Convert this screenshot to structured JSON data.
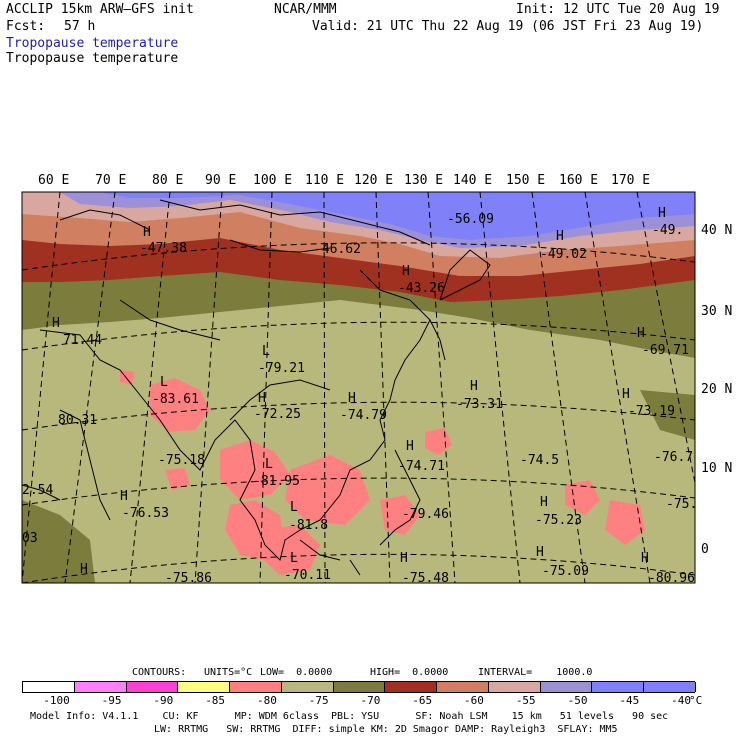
{
  "header": {
    "model": "ACCLIP 15km ARW—GFS init",
    "org": "NCAR/MMM",
    "init": "Init: 12 UTC Tue 20 Aug 19",
    "fcst_label": "Fcst:",
    "fcst_value": "57 h",
    "valid": "Valid: 21 UTC Thu 22 Aug 19 (06 JST Fri 23 Aug 19)",
    "field_colored": "Tropopause temperature",
    "field_plain": "Tropopause temperature"
  },
  "axes": {
    "lon_labels": [
      "60 E",
      "70 E",
      "80 E",
      "90 E",
      "100 E",
      "110 E",
      "120 E",
      "130 E",
      "140 E",
      "150 E",
      "160 E",
      "170 E"
    ],
    "lat_labels": [
      "40 N",
      "30 N",
      "20 N",
      "10 N",
      "0"
    ]
  },
  "chart_data": {
    "type": "heatmap",
    "title": "Tropopause temperature",
    "units": "°C",
    "contour_bands": [
      -100,
      -95,
      -90,
      -85,
      -80,
      -75,
      -70,
      -65,
      -60,
      -55,
      -50,
      -45,
      -40
    ],
    "colors": [
      "#ffffff",
      "#ff80ff",
      "#ff40d0",
      "#ffff80",
      "#ff8080",
      "#b8b87c",
      "#7c7c3c",
      "#a03020",
      "#d08060",
      "#d8a8a0",
      "#9c90d8",
      "#8080f8",
      "#8080ff"
    ],
    "extrema": [
      {
        "type": "H",
        "value": "-47.38"
      },
      {
        "type": "",
        "value": "-46.62"
      },
      {
        "type": "",
        "value": "-56.09"
      },
      {
        "type": "H",
        "value": "-49.02"
      },
      {
        "type": "H",
        "value": "-49."
      },
      {
        "type": "H",
        "value": "-43.26"
      },
      {
        "type": "H",
        "value": "71.44"
      },
      {
        "type": "L",
        "value": "-79.21"
      },
      {
        "type": "H",
        "value": "-69.71"
      },
      {
        "type": "L",
        "value": "-83.61"
      },
      {
        "type": "H",
        "value": "-72.25"
      },
      {
        "type": "H",
        "value": "-74.79"
      },
      {
        "type": "H",
        "value": "-73.31"
      },
      {
        "type": "H",
        "value": "-73.19"
      },
      {
        "type": "",
        "value": "80.31"
      },
      {
        "type": "",
        "value": "-75.18"
      },
      {
        "type": "H",
        "value": "-74.71"
      },
      {
        "type": "",
        "value": "-74.5"
      },
      {
        "type": "",
        "value": "-76.7"
      },
      {
        "type": "L",
        "value": "-81.95"
      },
      {
        "type": "",
        "value": "2.54"
      },
      {
        "type": "H",
        "value": "-76.53"
      },
      {
        "type": "L",
        "value": "-81.8"
      },
      {
        "type": "",
        "value": "-79.46"
      },
      {
        "type": "H",
        "value": "-75.23"
      },
      {
        "type": "",
        "value": "-75."
      },
      {
        "type": "",
        "value": "03"
      },
      {
        "type": "H",
        "value": "-75.86"
      },
      {
        "type": "L",
        "value": "-70.11"
      },
      {
        "type": "H",
        "value": "-75.48"
      },
      {
        "type": "H",
        "value": "-75.09"
      },
      {
        "type": "H",
        "value": "-80.96"
      }
    ]
  },
  "contours_info": {
    "label": "CONTOURS:",
    "units": "UNITS=°C",
    "low": "LOW=  0.0000",
    "high": "HIGH=  0.0000",
    "interval": "INTERVAL=    1000.0"
  },
  "colorbar": {
    "ticks": [
      "-100",
      "-95",
      "-90",
      "-85",
      "-80",
      "-75",
      "-70",
      "-65",
      "-60",
      "-55",
      "-50",
      "-45",
      "-40"
    ],
    "unit": "°C"
  },
  "footer": {
    "line1": "Model Info: V4.1.1    CU: KF      MP: WDM 6class  PBL: YSU      SF: Noah LSM    15 km   51 levels   90 sec",
    "line2": "LW: RRTMG   SW: RRTMG  DIFF: simple KM: 2D Smagor DAMP: Rayleigh3  SFLAY: MM5"
  }
}
